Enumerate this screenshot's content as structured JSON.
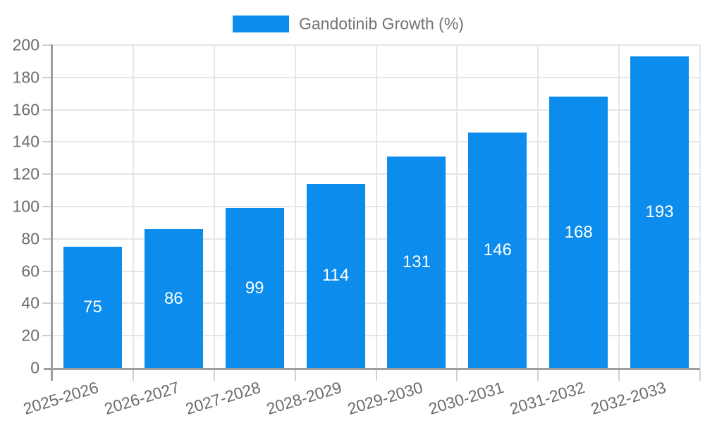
{
  "legend": {
    "position": "top-center",
    "label": "Gandotinib Growth (%)"
  },
  "chart_data": {
    "type": "bar",
    "title": "",
    "categories": [
      "2025-2026",
      "2026-2027",
      "2027-2028",
      "2028-2029",
      "2029-2030",
      "2030-2031",
      "2031-2032",
      "2032-2033"
    ],
    "series": [
      {
        "name": "Gandotinib Growth (%)",
        "values": [
          75,
          86,
          99,
          114,
          131,
          146,
          168,
          193
        ]
      }
    ],
    "xlabel": "",
    "ylabel": "",
    "ylim": [
      0,
      200
    ],
    "ytick_step": 20,
    "yticks": [
      0,
      20,
      40,
      60,
      80,
      100,
      120,
      140,
      160,
      180,
      200
    ],
    "grid": true,
    "show_value_labels": true,
    "value_label_position": "inside-center",
    "x_label_rotation_deg": -17,
    "legend_position": "top"
  },
  "colors": {
    "bar": "#0C8DEE",
    "background": "#ffffff",
    "gridline": "#e6e6e6",
    "tickline": "#cfcfcf",
    "axis_border": "#9e9e9e",
    "axis_text": "#6b6b6b",
    "legend_text": "#757575",
    "value_label_text": "#ffffff"
  }
}
